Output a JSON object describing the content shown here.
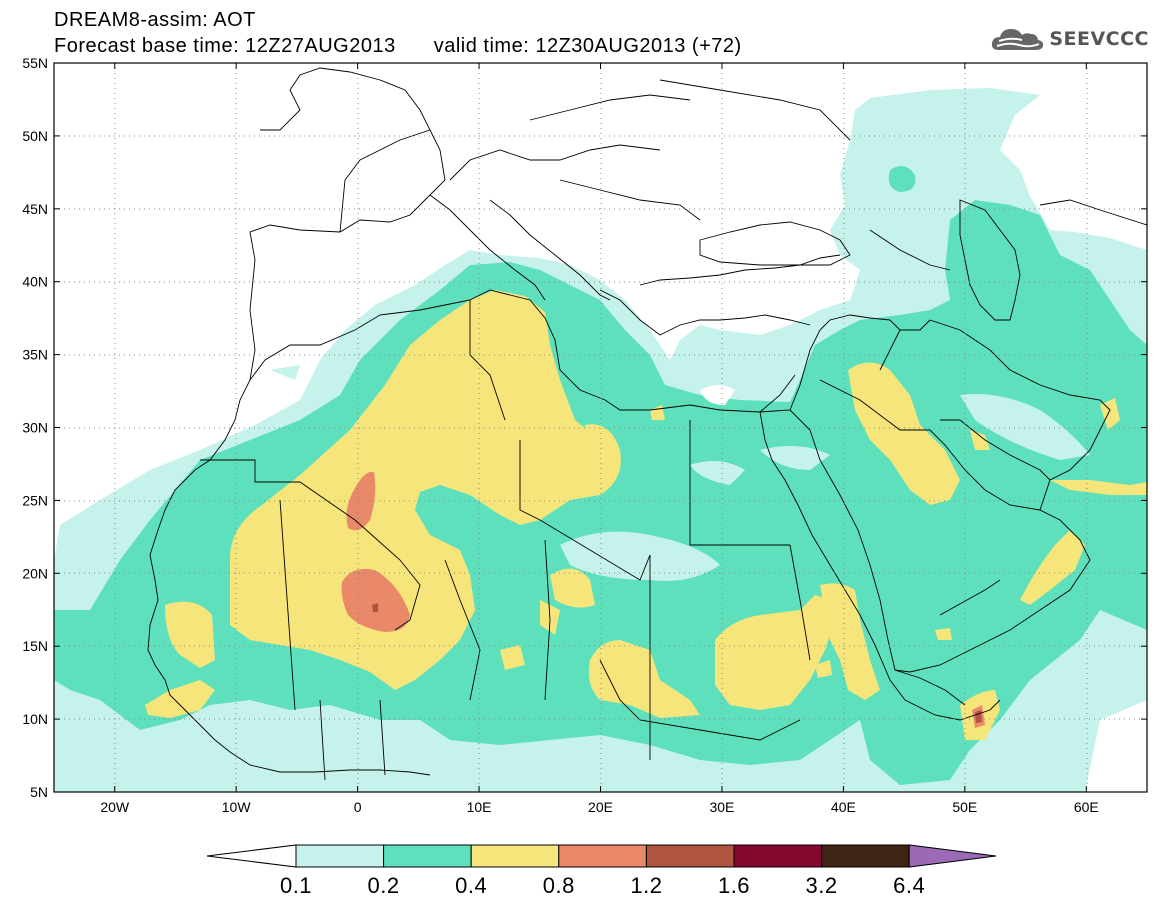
{
  "header": {
    "title": "DREAM8-assim: AOT",
    "base_time_label": "Forecast base time: 12Z27AUG2013",
    "valid_time_label": "valid time: 12Z30AUG2013 (+72)"
  },
  "logo": {
    "text": "SEEVCCC",
    "icon": "cloud-icon"
  },
  "map": {
    "lon_range": [
      -25,
      65
    ],
    "lat_range": [
      5,
      55
    ],
    "lon_ticks": [
      "20W",
      "10W",
      "0",
      "10E",
      "20E",
      "30E",
      "40E",
      "50E",
      "60E"
    ],
    "lat_ticks": [
      "5N",
      "10N",
      "15N",
      "20N",
      "25N",
      "30N",
      "35N",
      "40N",
      "45N",
      "50N",
      "55N"
    ],
    "gridlines": "dotted"
  },
  "colorbar": {
    "labels": [
      "0.1",
      "0.2",
      "0.4",
      "0.8",
      "1.2",
      "1.6",
      "3.2",
      "6.4"
    ],
    "colors": {
      "c0": "#ffffff",
      "c1": "#c6f2ec",
      "c2": "#5fe0bd",
      "c3": "#f6e57b",
      "c4": "#e9896a",
      "c5": "#b05440",
      "c6": "#84082e",
      "c7": "#3e2414",
      "c8": "#9a6bb4"
    }
  }
}
